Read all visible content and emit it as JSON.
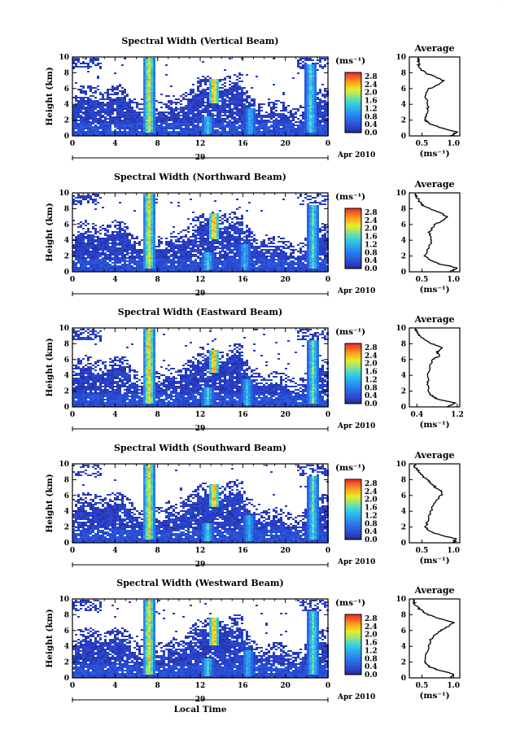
{
  "figure": {
    "xlabel": "Local Time",
    "date_label": "Apr 2010",
    "day_label": "29",
    "corner_mark": ":",
    "colorbar_unit": "(ms⁻¹)",
    "avg_xlabel": "(ms⁻¹)",
    "ylabel": "Height (km)",
    "avg_title": "Average"
  },
  "chart_data": [
    {
      "type": "heatmap",
      "title": "Spectral Width (Vertical Beam)",
      "xlabel": "",
      "ylabel": "Height (km)",
      "x_ticks": [
        "0",
        "4",
        "8",
        "12",
        "16",
        "20",
        "0"
      ],
      "xlim": [
        0,
        24
      ],
      "y_ticks": [
        "0",
        "2",
        "4",
        "6",
        "8",
        "10"
      ],
      "ylim": [
        0,
        10
      ],
      "colorbar_ticks": [
        "0.0",
        "0.4",
        "0.8",
        "1.2",
        "1.6",
        "2.0",
        "2.4",
        "2.8"
      ],
      "colorbar_range": [
        0,
        3.0
      ],
      "features": [
        {
          "time": 7.2,
          "from_km": 0.5,
          "to_km": 10,
          "peak": 2.4
        },
        {
          "time": 13.3,
          "from_km": 4.2,
          "to_km": 7.2,
          "peak": 2.9
        },
        {
          "time": 12.7,
          "from_km": 0.3,
          "to_km": 2.5,
          "peak": 1.6
        },
        {
          "time": 16.7,
          "from_km": 0.2,
          "to_km": 3.5,
          "peak": 1.4
        },
        {
          "time": 22.4,
          "from_km": 0.5,
          "to_km": 9.0,
          "peak": 1.8
        }
      ],
      "average": {
        "title": "Average",
        "xlabel": "(ms⁻¹)",
        "x_ticks": [
          "0.5",
          "1.0"
        ],
        "xlim": [
          0.3,
          1.1
        ],
        "height_km": [
          0,
          0.5,
          1,
          1.5,
          2,
          3,
          4,
          5,
          6,
          6.5,
          7,
          7.5,
          8,
          8.5,
          9,
          9.5,
          9.9
        ],
        "value": [
          0.95,
          1.05,
          0.82,
          0.62,
          0.55,
          0.58,
          0.6,
          0.55,
          0.62,
          0.76,
          0.85,
          0.7,
          0.55,
          0.48,
          0.45,
          0.45,
          0.45
        ]
      }
    },
    {
      "type": "heatmap",
      "title": "Spectral Width (Northward Beam)",
      "xlabel": "",
      "ylabel": "Height (km)",
      "x_ticks": [
        "0",
        "4",
        "8",
        "12",
        "16",
        "20",
        "0"
      ],
      "xlim": [
        0,
        24
      ],
      "y_ticks": [
        "0",
        "2",
        "4",
        "6",
        "8",
        "10"
      ],
      "ylim": [
        0,
        10
      ],
      "colorbar_ticks": [
        "0.0",
        "0.4",
        "0.8",
        "1.2",
        "1.6",
        "2.0",
        "2.4",
        "2.8"
      ],
      "colorbar_range": [
        0,
        3.0
      ],
      "features": [
        {
          "time": 7.2,
          "from_km": 0.5,
          "to_km": 10,
          "peak": 2.5
        },
        {
          "time": 13.3,
          "from_km": 4.2,
          "to_km": 7.4,
          "peak": 2.9
        },
        {
          "time": 12.7,
          "from_km": 0.3,
          "to_km": 2.5,
          "peak": 1.7
        },
        {
          "time": 16.2,
          "from_km": 0.2,
          "to_km": 3.5,
          "peak": 1.4
        },
        {
          "time": 22.6,
          "from_km": 0.5,
          "to_km": 8.5,
          "peak": 1.8
        }
      ],
      "average": {
        "title": "Average",
        "xlabel": "(ms⁻¹)",
        "x_ticks": [
          "0.5",
          "1.0"
        ],
        "xlim": [
          0.3,
          1.1
        ],
        "height_km": [
          0,
          0.5,
          1,
          1.5,
          2,
          3,
          4,
          5,
          6,
          6.5,
          7,
          7.5,
          8,
          8.5,
          9,
          9.5,
          9.9
        ],
        "value": [
          0.95,
          1.05,
          0.78,
          0.62,
          0.55,
          0.6,
          0.65,
          0.62,
          0.7,
          0.85,
          0.9,
          0.78,
          0.62,
          0.5,
          0.45,
          0.42,
          0.4
        ]
      }
    },
    {
      "type": "heatmap",
      "title": "Spectral Width (Eastward Beam)",
      "xlabel": "",
      "ylabel": "Height (km)",
      "x_ticks": [
        "0",
        "4",
        "8",
        "12",
        "16",
        "20",
        "0"
      ],
      "xlim": [
        0,
        24
      ],
      "y_ticks": [
        "0",
        "2",
        "4",
        "6",
        "8",
        "10"
      ],
      "ylim": [
        0,
        10
      ],
      "colorbar_ticks": [
        "0.0",
        "0.4",
        "0.8",
        "1.2",
        "1.6",
        "2.0",
        "2.4",
        "2.8"
      ],
      "colorbar_range": [
        0,
        3.0
      ],
      "features": [
        {
          "time": 7.2,
          "from_km": 0.5,
          "to_km": 10,
          "peak": 2.6
        },
        {
          "time": 13.3,
          "from_km": 4.4,
          "to_km": 7.2,
          "peak": 2.9
        },
        {
          "time": 12.7,
          "from_km": 0.3,
          "to_km": 2.5,
          "peak": 1.7
        },
        {
          "time": 16.4,
          "from_km": 0.2,
          "to_km": 3.5,
          "peak": 1.5
        },
        {
          "time": 22.6,
          "from_km": 0.5,
          "to_km": 8.5,
          "peak": 1.9
        }
      ],
      "average": {
        "title": "Average",
        "xlabel": "(ms⁻¹)",
        "x_ticks": [
          "0.4",
          "1.2"
        ],
        "xlim": [
          0.25,
          1.25
        ],
        "height_km": [
          0,
          0.5,
          1,
          1.5,
          2,
          3,
          4,
          5,
          6,
          6.5,
          7,
          7.5,
          8,
          8.5,
          9,
          9.5,
          9.9
        ],
        "value": [
          1.0,
          1.15,
          0.8,
          0.68,
          0.62,
          0.62,
          0.62,
          0.65,
          0.72,
          0.85,
          0.8,
          0.92,
          0.7,
          0.55,
          0.45,
          0.4,
          0.38
        ]
      }
    },
    {
      "type": "heatmap",
      "title": "Spectral Width (Southward Beam)",
      "xlabel": "",
      "ylabel": "Height (km)",
      "x_ticks": [
        "0",
        "4",
        "8",
        "12",
        "16",
        "20",
        "0"
      ],
      "xlim": [
        0,
        24
      ],
      "y_ticks": [
        "0",
        "2",
        "4",
        "6",
        "8",
        "10"
      ],
      "ylim": [
        0,
        10
      ],
      "colorbar_ticks": [
        "0.0",
        "0.4",
        "0.8",
        "1.2",
        "1.6",
        "2.0",
        "2.4",
        "2.8"
      ],
      "colorbar_range": [
        0,
        3.0
      ],
      "features": [
        {
          "time": 7.2,
          "from_km": 0.5,
          "to_km": 10,
          "peak": 2.5
        },
        {
          "time": 13.3,
          "from_km": 4.5,
          "to_km": 7.5,
          "peak": 2.9
        },
        {
          "time": 12.7,
          "from_km": 0.3,
          "to_km": 2.5,
          "peak": 1.7
        },
        {
          "time": 16.6,
          "from_km": 0.2,
          "to_km": 3.5,
          "peak": 1.4
        },
        {
          "time": 22.6,
          "from_km": 0.5,
          "to_km": 8.5,
          "peak": 1.8
        }
      ],
      "average": {
        "title": "Average",
        "xlabel": "(ms⁻¹)",
        "x_ticks": [
          "0.5",
          "1.0"
        ],
        "xlim": [
          0.3,
          1.1
        ],
        "height_km": [
          0,
          0.5,
          1,
          1.5,
          2,
          3,
          4,
          5,
          6,
          6.5,
          7,
          7.5,
          8,
          8.5,
          9,
          9.5,
          9.9
        ],
        "value": [
          1.0,
          1.05,
          0.78,
          0.62,
          0.56,
          0.6,
          0.64,
          0.68,
          0.8,
          0.82,
          0.72,
          0.65,
          0.58,
          0.5,
          0.45,
          0.4,
          0.38
        ]
      }
    },
    {
      "type": "heatmap",
      "title": "Spectral Width (Westward Beam)",
      "xlabel": "Local Time",
      "ylabel": "Height (km)",
      "x_ticks": [
        "0",
        "4",
        "8",
        "12",
        "16",
        "20",
        "0"
      ],
      "xlim": [
        0,
        24
      ],
      "y_ticks": [
        "0",
        "2",
        "4",
        "6",
        "8",
        "10"
      ],
      "ylim": [
        0,
        10
      ],
      "colorbar_ticks": [
        "0.0",
        "0.4",
        "0.8",
        "1.2",
        "1.6",
        "2.0",
        "2.4",
        "2.8"
      ],
      "colorbar_range": [
        0,
        3.0
      ],
      "features": [
        {
          "time": 7.2,
          "from_km": 0.5,
          "to_km": 10,
          "peak": 2.5
        },
        {
          "time": 13.3,
          "from_km": 4.2,
          "to_km": 7.6,
          "peak": 2.9
        },
        {
          "time": 12.7,
          "from_km": 0.3,
          "to_km": 2.5,
          "peak": 1.7
        },
        {
          "time": 16.5,
          "from_km": 0.2,
          "to_km": 3.5,
          "peak": 1.4
        },
        {
          "time": 22.6,
          "from_km": 0.5,
          "to_km": 8.5,
          "peak": 1.9
        }
      ],
      "average": {
        "title": "Average",
        "xlabel": "(ms⁻¹)",
        "x_ticks": [
          "0.5",
          "1.0"
        ],
        "xlim": [
          0.3,
          1.1
        ],
        "height_km": [
          0,
          0.5,
          1,
          1.5,
          2,
          3,
          4,
          5,
          6,
          6.5,
          7,
          7.5,
          8,
          8.5,
          9,
          9.5,
          9.9
        ],
        "value": [
          0.95,
          1.0,
          0.75,
          0.6,
          0.55,
          0.56,
          0.6,
          0.65,
          0.8,
          0.9,
          1.0,
          0.78,
          0.6,
          0.5,
          0.42,
          0.38,
          0.36
        ]
      }
    }
  ]
}
